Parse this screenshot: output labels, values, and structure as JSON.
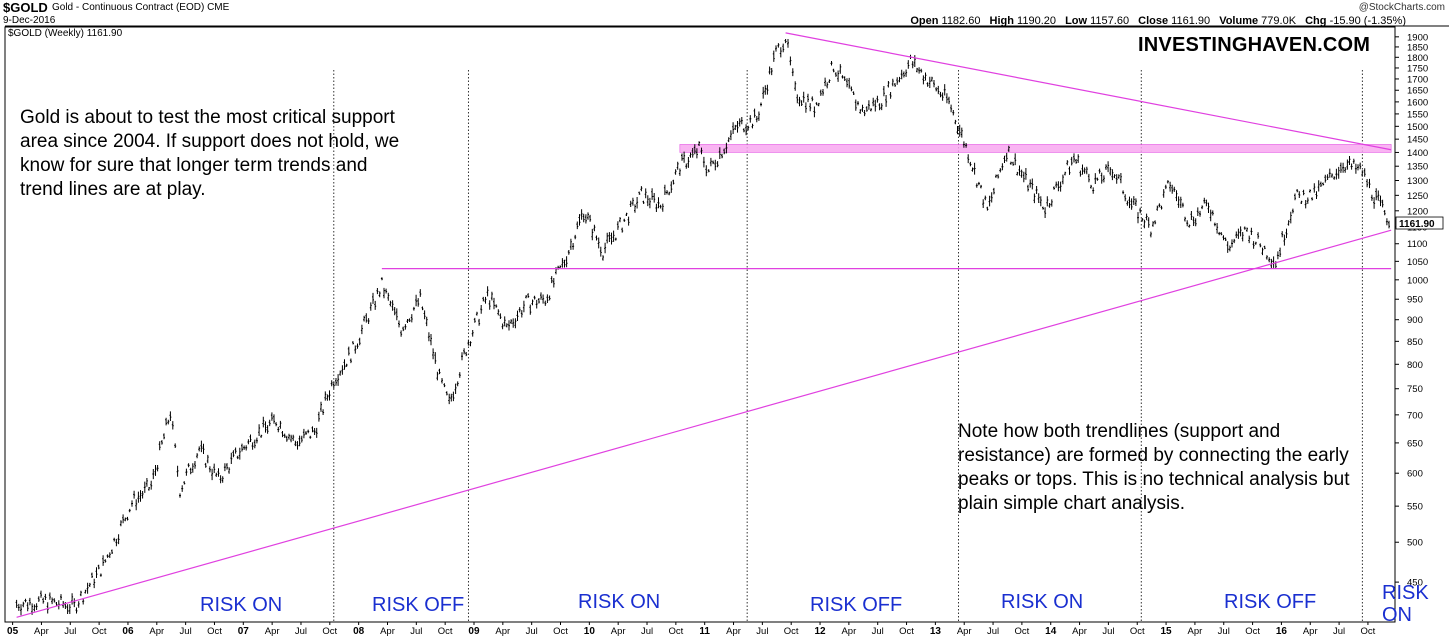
{
  "header": {
    "symbol": "$GOLD",
    "description": "Gold - Continuous Contract (EOD)",
    "exchange": "CME",
    "date": "9-Dec-2016",
    "brand": "@StockCharts.com",
    "open_label": "Open",
    "open": "1182.60",
    "high_label": "High",
    "high": "1190.20",
    "low_label": "Low",
    "low": "1157.60",
    "close_label": "Close",
    "close": "1161.90",
    "volume_label": "Volume",
    "volume": "779.0K",
    "chg_label": "Chg",
    "chg": "-15.90 (-1.35%)"
  },
  "pane_label": "$GOLD (Weekly) 1161.90",
  "logo": "INVESTINGHAVEN.COM",
  "annotation_left": "Gold is about to test the most critical support area since 2004. If support does not hold, we know for sure that longer term trends and trend lines are at play.",
  "annotation_right": "Note how both trendlines (support and resistance) are formed by connecting the early peaks or tops. This is no technical analysis but plain simple chart analysis.",
  "last_price_tag": "1161.90",
  "colors": {
    "trendline": "#e040e0",
    "zone": "#f8a8f0",
    "risk_text": "#1a2fd0",
    "price_bars": "#000000"
  },
  "regimes": [
    {
      "label": "RISK ON"
    },
    {
      "label": "RISK OFF"
    },
    {
      "label": "RISK ON"
    },
    {
      "label": "RISK OFF"
    },
    {
      "label": "RISK ON"
    },
    {
      "label": "RISK OFF"
    },
    {
      "label": "RISK ON"
    }
  ],
  "chart_data": {
    "type": "line",
    "title": "$GOLD (Weekly)",
    "y_scale": "log",
    "ylim": [
      400,
      1950
    ],
    "y_ticks": [
      450,
      500,
      550,
      600,
      650,
      700,
      750,
      800,
      850,
      900,
      950,
      1000,
      1050,
      1100,
      1150,
      1200,
      1250,
      1300,
      1350,
      1400,
      1450,
      1500,
      1550,
      1600,
      1650,
      1700,
      1750,
      1800,
      1850,
      1900
    ],
    "x_tick_labels": [
      "05",
      "Apr",
      "Jul",
      "Oct",
      "06",
      "Apr",
      "Jul",
      "Oct",
      "07",
      "Apr",
      "Jul",
      "Oct",
      "08",
      "Apr",
      "Jul",
      "Oct",
      "09",
      "Apr",
      "Jul",
      "Oct",
      "10",
      "Apr",
      "Jul",
      "Oct",
      "11",
      "Apr",
      "Jul",
      "Oct",
      "12",
      "Apr",
      "Jul",
      "Oct",
      "13",
      "Apr",
      "Jul",
      "Oct",
      "14",
      "Apr",
      "Jul",
      "Oct",
      "15",
      "Apr",
      "Jul",
      "Oct",
      "16",
      "Apr",
      "Jul",
      "Oct"
    ],
    "x_range": [
      "2005-01",
      "2016-12"
    ],
    "series": [
      {
        "points": [
          [
            "2005-01",
            425
          ],
          [
            "2005-04",
            428
          ],
          [
            "2005-07",
            422
          ],
          [
            "2005-10",
            470
          ],
          [
            "2006-01",
            555
          ],
          [
            "2006-03",
            580
          ],
          [
            "2006-05",
            705
          ],
          [
            "2006-06",
            575
          ],
          [
            "2006-08",
            640
          ],
          [
            "2006-10",
            590
          ],
          [
            "2006-12",
            632
          ],
          [
            "2007-02",
            665
          ],
          [
            "2007-04",
            690
          ],
          [
            "2007-06",
            650
          ],
          [
            "2007-08",
            670
          ],
          [
            "2007-10",
            770
          ],
          [
            "2007-12",
            830
          ],
          [
            "2008-03",
            985
          ],
          [
            "2008-05",
            880
          ],
          [
            "2008-07",
            950
          ],
          [
            "2008-09",
            770
          ],
          [
            "2008-10",
            720
          ],
          [
            "2008-12",
            850
          ],
          [
            "2009-02",
            960
          ],
          [
            "2009-04",
            880
          ],
          [
            "2009-06",
            940
          ],
          [
            "2009-08",
            950
          ],
          [
            "2009-10",
            1050
          ],
          [
            "2009-12",
            1200
          ],
          [
            "2010-02",
            1080
          ],
          [
            "2010-04",
            1160
          ],
          [
            "2010-06",
            1250
          ],
          [
            "2010-08",
            1220
          ],
          [
            "2010-10",
            1350
          ],
          [
            "2010-12",
            1410
          ],
          [
            "2011-01",
            1335
          ],
          [
            "2011-04",
            1500
          ],
          [
            "2011-06",
            1530
          ],
          [
            "2011-08",
            1820
          ],
          [
            "2011-09",
            1900
          ],
          [
            "2011-10",
            1640
          ],
          [
            "2011-12",
            1580
          ],
          [
            "2012-02",
            1760
          ],
          [
            "2012-05",
            1560
          ],
          [
            "2012-07",
            1610
          ],
          [
            "2012-10",
            1780
          ],
          [
            "2012-12",
            1690
          ],
          [
            "2013-02",
            1600
          ],
          [
            "2013-04",
            1400
          ],
          [
            "2013-06",
            1200
          ],
          [
            "2013-08",
            1410
          ],
          [
            "2013-10",
            1300
          ],
          [
            "2013-12",
            1210
          ],
          [
            "2014-03",
            1380
          ],
          [
            "2014-05",
            1290
          ],
          [
            "2014-07",
            1340
          ],
          [
            "2014-09",
            1220
          ],
          [
            "2014-11",
            1150
          ],
          [
            "2015-01",
            1290
          ],
          [
            "2015-03",
            1170
          ],
          [
            "2015-05",
            1220
          ],
          [
            "2015-07",
            1090
          ],
          [
            "2015-09",
            1140
          ],
          [
            "2015-12",
            1050
          ],
          [
            "2016-02",
            1240
          ],
          [
            "2016-04",
            1250
          ],
          [
            "2016-07",
            1360
          ],
          [
            "2016-09",
            1330
          ],
          [
            "2016-10",
            1260
          ],
          [
            "2016-12",
            1161.9
          ]
        ]
      }
    ],
    "lines": [
      {
        "kind": "resistance",
        "from": [
          "2011-09",
          1920
        ],
        "to": [
          "2016-12",
          1410
        ]
      },
      {
        "kind": "support",
        "from": [
          "2005-01",
          410
        ],
        "to": [
          "2016-12",
          1140
        ]
      },
      {
        "kind": "horizontal",
        "value": 1030,
        "from": "2008-03",
        "to": "2016-12"
      }
    ],
    "zone": {
      "from": "2010-10",
      "to": "2016-12",
      "ymin": 1400,
      "ymax": 1430
    },
    "last_value": 1161.9,
    "grid": false
  }
}
